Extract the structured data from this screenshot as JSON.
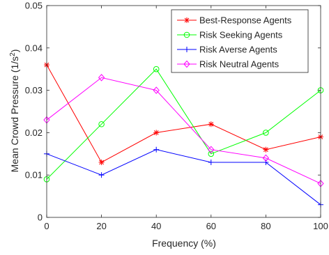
{
  "chart_data": {
    "type": "line",
    "xlabel": "Frequency (%)",
    "ylabel_main": "Mean Crowd Pressure (1/s",
    "ylabel_sup": "2",
    "ylabel_close": ")",
    "xlim": [
      0,
      100
    ],
    "ylim": [
      0,
      0.05
    ],
    "x": [
      0,
      20,
      40,
      60,
      80,
      100
    ],
    "xticks": [
      "0",
      "20",
      "40",
      "60",
      "80",
      "100"
    ],
    "yticks": [
      "0",
      "0.01",
      "0.02",
      "0.03",
      "0.04",
      "0.05"
    ],
    "grid": false,
    "legend_position": "top-right",
    "series": [
      {
        "name": "Best-Response Agents",
        "color": "#ff0000",
        "marker": "asterisk",
        "values": [
          0.036,
          0.013,
          0.02,
          0.022,
          0.016,
          0.019
        ]
      },
      {
        "name": "Risk Seeking Agents",
        "color": "#00ff00",
        "marker": "circle",
        "values": [
          0.009,
          0.022,
          0.035,
          0.015,
          0.02,
          0.03
        ]
      },
      {
        "name": "Risk Averse Agents",
        "color": "#0000ff",
        "marker": "plus",
        "values": [
          0.015,
          0.01,
          0.016,
          0.013,
          0.013,
          0.003
        ]
      },
      {
        "name": "Risk Neutral Agents",
        "color": "#ff00ff",
        "marker": "diamond",
        "values": [
          0.023,
          0.033,
          0.03,
          0.016,
          0.014,
          0.008
        ]
      }
    ]
  }
}
